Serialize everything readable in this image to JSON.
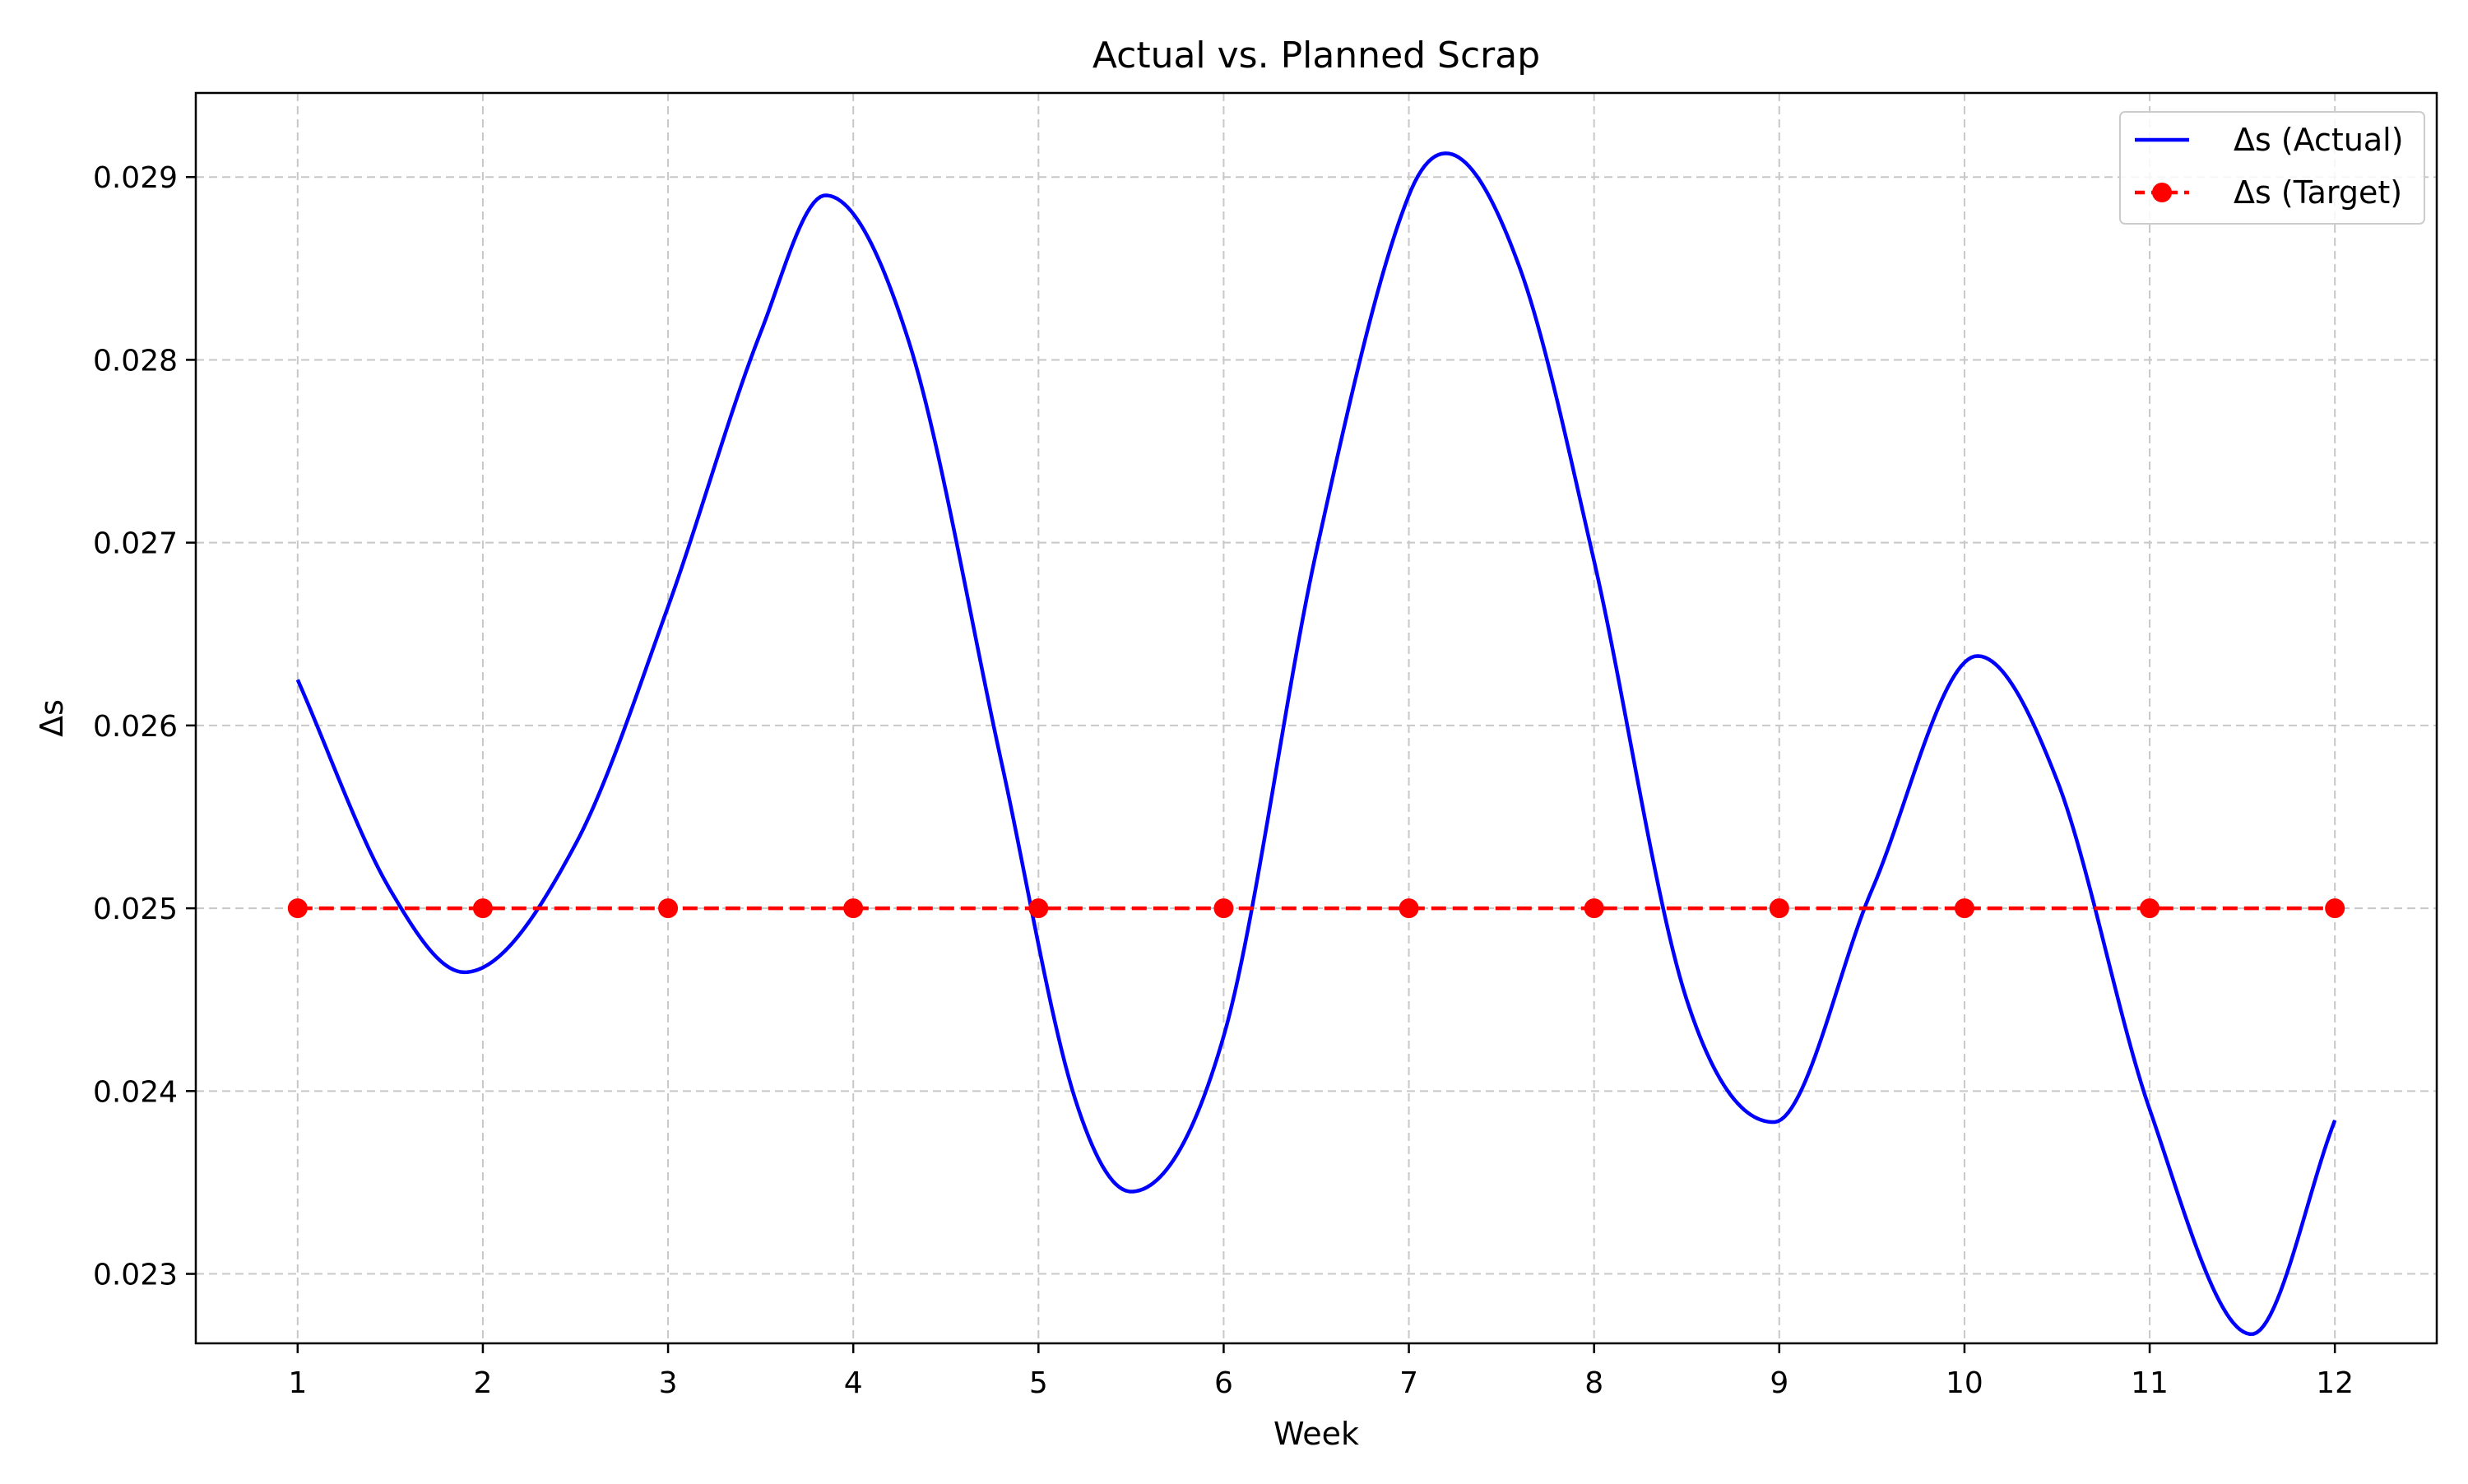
{
  "chart_data": {
    "type": "line",
    "title": "Actual vs. Planned Scrap",
    "xlabel": "Week",
    "ylabel": "Δs",
    "xlim": [
      0.45,
      12.55
    ],
    "ylim": [
      0.02262,
      0.02946
    ],
    "xticks": [
      1,
      2,
      3,
      4,
      5,
      6,
      7,
      8,
      9,
      10,
      11,
      12
    ],
    "xtick_labels": [
      "1",
      "2",
      "3",
      "4",
      "5",
      "6",
      "7",
      "8",
      "9",
      "10",
      "11",
      "12"
    ],
    "yticks": [
      0.023,
      0.024,
      0.025,
      0.026,
      0.027,
      0.028,
      0.029
    ],
    "ytick_labels": [
      "0.023",
      "0.024",
      "0.025",
      "0.026",
      "0.027",
      "0.028",
      "0.029"
    ],
    "grid": true,
    "legend_position": "top-right",
    "series": [
      {
        "name": "Δs  (Actual)",
        "color": "#0000ff",
        "style": "solid",
        "marker": "none",
        "x": [
          1,
          1.5,
          1.9,
          2.5,
          3,
          3.5,
          3.85,
          4.3,
          4.8,
          5.2,
          5.5,
          6,
          6.5,
          7,
          7.2,
          7.6,
          8,
          8.5,
          8.97,
          9.5,
          10.07,
          10.5,
          11,
          11.55,
          12
        ],
        "y": [
          0.02625,
          0.0251,
          0.02465,
          0.02535,
          0.02665,
          0.02815,
          0.0289,
          0.0281,
          0.0258,
          0.02395,
          0.02345,
          0.0243,
          0.02695,
          0.0289,
          0.02913,
          0.0285,
          0.0269,
          0.0245,
          0.02383,
          0.0251,
          0.02638,
          0.0257,
          0.0239,
          0.02267,
          0.02384
        ]
      },
      {
        "name": "Δs  (Target)",
        "color": "#ff0000",
        "style": "dashed",
        "marker": "circle",
        "x": [
          1,
          2,
          3,
          4,
          5,
          6,
          7,
          8,
          9,
          10,
          11,
          12
        ],
        "y": [
          0.025,
          0.025,
          0.025,
          0.025,
          0.025,
          0.025,
          0.025,
          0.025,
          0.025,
          0.025,
          0.025,
          0.025
        ]
      }
    ]
  }
}
